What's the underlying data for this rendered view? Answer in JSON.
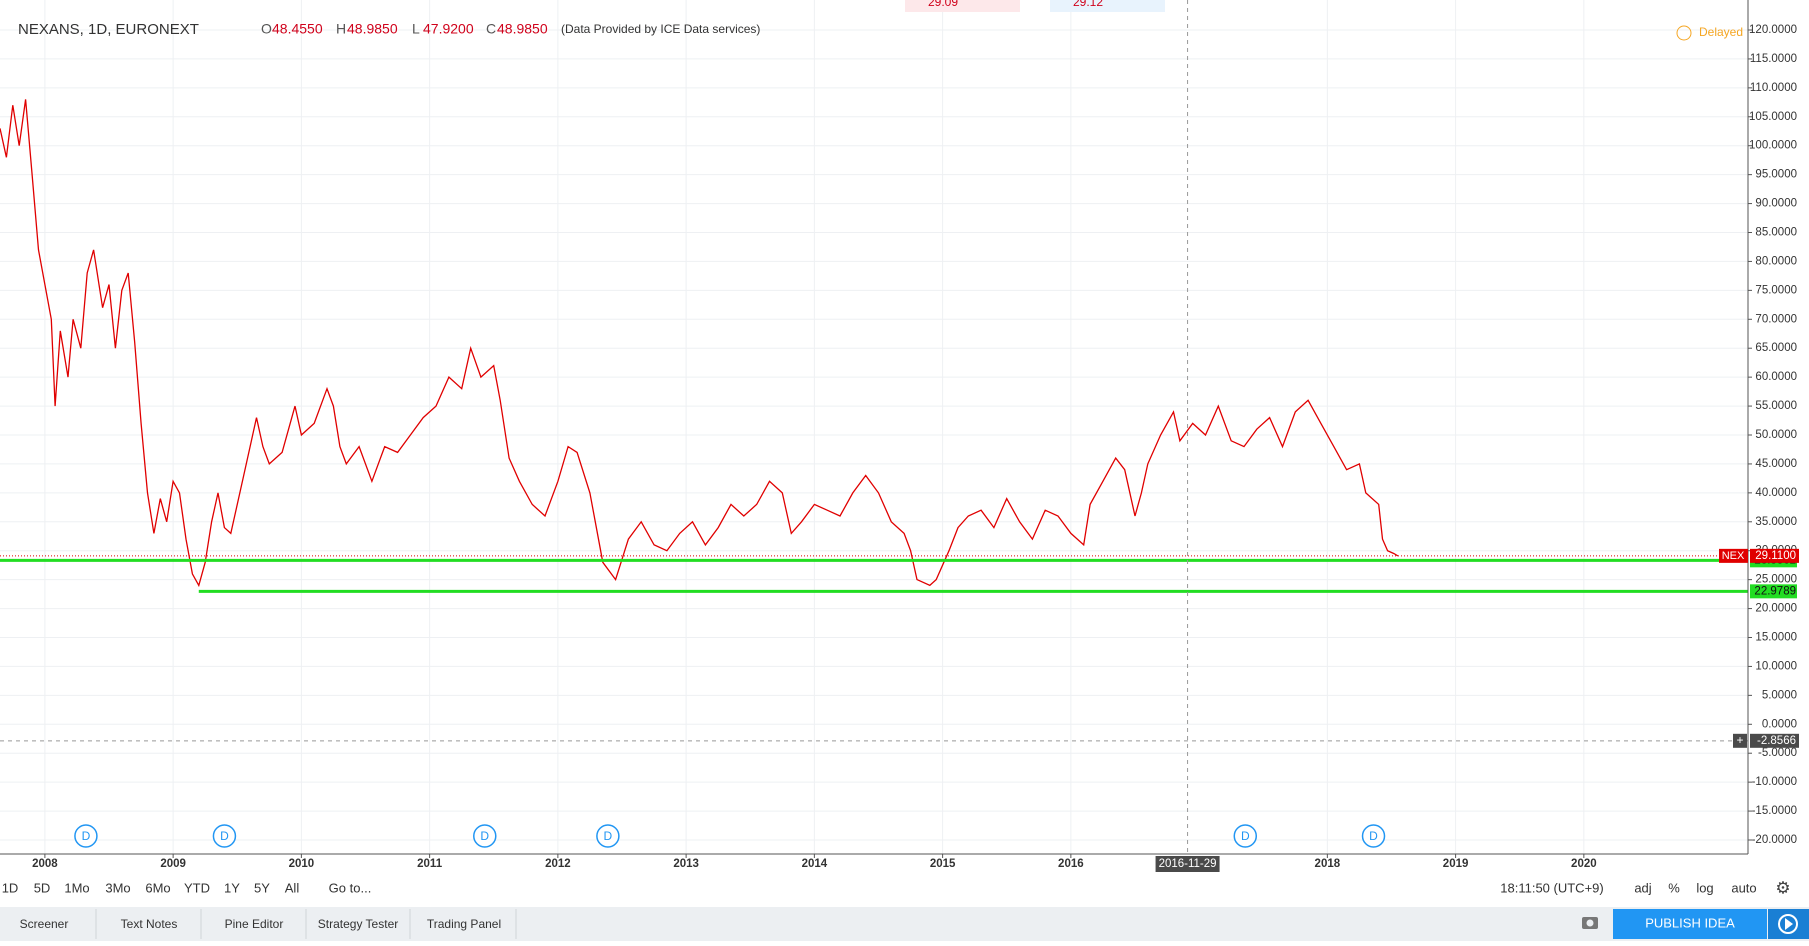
{
  "header": {
    "symbol": "NEXANS, 1D, EURONEXT",
    "ohlc": [
      {
        "key": "O",
        "value": "48.4550"
      },
      {
        "key": "H",
        "value": "48.9850"
      },
      {
        "key": "L",
        "value": "47.9200"
      },
      {
        "key": "C",
        "value": "48.9850"
      }
    ],
    "provider": "(Data Provided by ICE Data services)",
    "status": "Delayed",
    "top_fragments": [
      "29.09",
      "29.12"
    ]
  },
  "chart_data": {
    "type": "line",
    "grid": true,
    "series": [
      {
        "name": "NEX",
        "color": "#e00000",
        "x": [
          2007.65,
          2007.7,
          2007.75,
          2007.8,
          2007.85,
          2007.9,
          2007.95,
          2008.0,
          2008.05,
          2008.08,
          2008.12,
          2008.18,
          2008.22,
          2008.28,
          2008.33,
          2008.38,
          2008.45,
          2008.5,
          2008.55,
          2008.6,
          2008.65,
          2008.7,
          2008.75,
          2008.8,
          2008.85,
          2008.9,
          2008.95,
          2009.0,
          2009.05,
          2009.1,
          2009.15,
          2009.2,
          2009.25,
          2009.3,
          2009.35,
          2009.4,
          2009.45,
          2009.55,
          2009.6,
          2009.65,
          2009.7,
          2009.75,
          2009.85,
          2009.95,
          2010.0,
          2010.1,
          2010.2,
          2010.25,
          2010.3,
          2010.35,
          2010.45,
          2010.55,
          2010.65,
          2010.75,
          2010.85,
          2010.95,
          2011.05,
          2011.15,
          2011.25,
          2011.32,
          2011.4,
          2011.5,
          2011.55,
          2011.62,
          2011.7,
          2011.8,
          2011.9,
          2012.0,
          2012.08,
          2012.15,
          2012.25,
          2012.35,
          2012.45,
          2012.55,
          2012.65,
          2012.75,
          2012.85,
          2012.95,
          2013.05,
          2013.15,
          2013.25,
          2013.35,
          2013.45,
          2013.55,
          2013.65,
          2013.75,
          2013.82,
          2013.9,
          2014.0,
          2014.1,
          2014.2,
          2014.3,
          2014.4,
          2014.5,
          2014.6,
          2014.7,
          2014.75,
          2014.8,
          2014.9,
          2014.95,
          2015.05,
          2015.12,
          2015.2,
          2015.3,
          2015.4,
          2015.5,
          2015.6,
          2015.7,
          2015.8,
          2015.9,
          2016.0,
          2016.1,
          2016.15,
          2016.25,
          2016.35,
          2016.42,
          2016.5,
          2016.55,
          2016.6,
          2016.7,
          2016.8,
          2016.85,
          2016.95,
          2017.05,
          2017.15,
          2017.25,
          2017.35,
          2017.45,
          2017.55,
          2017.65,
          2017.75,
          2017.85,
          2017.95,
          2018.05,
          2018.15,
          2018.25,
          2018.3,
          2018.4,
          2018.43,
          2018.47,
          2018.52,
          2018.55
        ],
        "values": [
          103,
          98,
          107,
          100,
          108,
          95,
          82,
          76,
          70,
          55,
          68,
          60,
          70,
          65,
          78,
          82,
          72,
          76,
          65,
          75,
          78,
          66,
          52,
          40,
          33,
          39,
          35,
          42,
          40,
          32,
          26,
          24,
          28,
          35,
          40,
          34,
          33,
          43,
          48,
          53,
          48,
          45,
          47,
          55,
          50,
          52,
          58,
          55,
          48,
          45,
          48,
          42,
          48,
          47,
          50,
          53,
          55,
          60,
          58,
          65,
          60,
          62,
          56,
          46,
          42,
          38,
          36,
          42,
          48,
          47,
          40,
          28,
          25,
          32,
          35,
          31,
          30,
          33,
          35,
          31,
          34,
          38,
          36,
          38,
          42,
          40,
          33,
          35,
          38,
          37,
          36,
          40,
          43,
          40,
          35,
          33,
          30,
          25,
          24,
          25,
          30,
          34,
          36,
          37,
          34,
          39,
          35,
          32,
          37,
          36,
          33,
          31,
          38,
          42,
          46,
          44,
          36,
          40,
          45,
          50,
          54,
          49,
          52,
          50,
          55,
          49,
          48,
          51,
          53,
          48,
          54,
          56,
          52,
          48,
          44,
          45,
          40,
          38,
          32,
          30,
          29.5,
          29.11
        ],
        "last_label": "NEX",
        "last_value": 29.11,
        "last_value_label": "29.1100"
      }
    ],
    "hlines": [
      {
        "value": 28.3362,
        "color": "#22dd22",
        "start": 2007.65
      },
      {
        "value": 22.9789,
        "color": "#22dd22",
        "start": 2009.2
      }
    ],
    "xlim": [
      2007.65,
      2021.28
    ],
    "xticks": [
      2008,
      2009,
      2010,
      2011,
      2012,
      2013,
      2014,
      2015,
      2016,
      2018,
      2019,
      2020
    ],
    "ylim": [
      -20,
      120
    ],
    "yticks": [
      {
        "value": 120,
        "label": "120.0000"
      },
      {
        "value": 115,
        "label": "115.0000"
      },
      {
        "value": 110,
        "label": "110.0000"
      },
      {
        "value": 105,
        "label": "105.0000"
      },
      {
        "value": 100,
        "label": "100.0000"
      },
      {
        "value": 95,
        "label": "95.0000"
      },
      {
        "value": 90,
        "label": "90.0000"
      },
      {
        "value": 85,
        "label": "85.0000"
      },
      {
        "value": 80,
        "label": "80.0000"
      },
      {
        "value": 75,
        "label": "75.0000"
      },
      {
        "value": 70,
        "label": "70.0000"
      },
      {
        "value": 65,
        "label": "65.0000"
      },
      {
        "value": 60,
        "label": "60.0000"
      },
      {
        "value": 55,
        "label": "55.0000"
      },
      {
        "value": 50,
        "label": "50.0000"
      },
      {
        "value": 45,
        "label": "45.0000"
      },
      {
        "value": 40,
        "label": "40.0000"
      },
      {
        "value": 35,
        "label": "35.0000"
      },
      {
        "value": 30,
        "label": "30.0000"
      },
      {
        "value": 25,
        "label": "25.0000"
      },
      {
        "value": 20,
        "label": "20.0000"
      },
      {
        "value": 15,
        "label": "15.0000"
      },
      {
        "value": 10,
        "label": "10.0000"
      },
      {
        "value": 5,
        "label": "5.0000"
      },
      {
        "value": 0,
        "label": "0.0000"
      },
      {
        "value": -5,
        "label": "-5.0000"
      },
      {
        "value": -10,
        "label": "-10.0000"
      },
      {
        "value": -15,
        "label": "-15.0000"
      },
      {
        "value": -20,
        "label": "-20.0000"
      }
    ],
    "events": {
      "label": "D",
      "x": [
        2008.32,
        2009.4,
        2011.43,
        2012.39,
        2017.36,
        2018.36
      ]
    },
    "crosshair": {
      "x": 2016.91,
      "x_label": "2016-11-29",
      "y": -2.8566
    }
  },
  "toolbar": {
    "ranges": [
      "1D",
      "5D",
      "1Mo",
      "3Mo",
      "6Mo",
      "YTD",
      "1Y",
      "5Y",
      "All"
    ],
    "goto": "Go to...",
    "time": "18:11:50 (UTC+9)",
    "options": [
      "adj",
      "%",
      "log",
      "auto"
    ]
  },
  "tabs": [
    "Screener",
    "Text Notes",
    "Pine Editor",
    "Strategy Tester",
    "Trading Panel"
  ],
  "publish": "PUBLISH IDEA"
}
